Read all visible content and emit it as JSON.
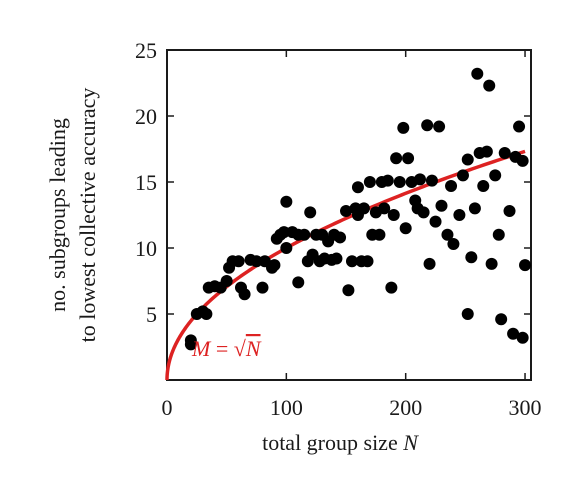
{
  "chart_data": {
    "type": "scatter",
    "title": "",
    "xlabel": "total group size ",
    "xlabel_var": "N",
    "ylabel_line1": "no. subgroups leading",
    "ylabel_line2": "to lowest collective accuracy",
    "xlim": [
      0,
      305
    ],
    "ylim": [
      0,
      25
    ],
    "xticks": [
      0,
      100,
      200,
      300
    ],
    "yticks": [
      5,
      10,
      15,
      20,
      25
    ],
    "grid": false,
    "colors": {
      "points": "#000000",
      "fit": "#dd2222",
      "axis": "#1a1a1a"
    },
    "fit_line": {
      "formula": "M = sqrt(N)",
      "label_var_left": "M",
      "label_eq": " = ",
      "label_sqrt": "√",
      "label_var_right": "N",
      "x_range": [
        0,
        300
      ]
    },
    "points": [
      [
        20,
        3
      ],
      [
        20,
        2.7
      ],
      [
        25,
        5
      ],
      [
        30,
        5.2
      ],
      [
        33,
        5
      ],
      [
        35,
        7
      ],
      [
        40,
        7.1
      ],
      [
        45,
        7
      ],
      [
        50,
        7.5
      ],
      [
        52,
        8.5
      ],
      [
        55,
        9
      ],
      [
        60,
        9
      ],
      [
        62,
        7
      ],
      [
        65,
        6.5
      ],
      [
        70,
        9.1
      ],
      [
        75,
        9
      ],
      [
        80,
        7
      ],
      [
        82,
        9
      ],
      [
        88,
        8.5
      ],
      [
        90,
        8.7
      ],
      [
        92,
        10.7
      ],
      [
        95,
        11
      ],
      [
        98,
        11.2
      ],
      [
        100,
        13.5
      ],
      [
        100,
        10
      ],
      [
        105,
        11.2
      ],
      [
        110,
        11
      ],
      [
        110,
        7.4
      ],
      [
        115,
        11
      ],
      [
        118,
        9
      ],
      [
        120,
        12.7
      ],
      [
        122,
        9.5
      ],
      [
        125,
        11
      ],
      [
        128,
        9
      ],
      [
        130,
        11
      ],
      [
        132,
        9.2
      ],
      [
        135,
        10.5
      ],
      [
        138,
        9.1
      ],
      [
        140,
        11
      ],
      [
        142,
        9.2
      ],
      [
        145,
        10.8
      ],
      [
        150,
        12.8
      ],
      [
        152,
        6.8
      ],
      [
        155,
        9
      ],
      [
        158,
        13
      ],
      [
        160,
        14.6
      ],
      [
        160,
        12.5
      ],
      [
        163,
        9
      ],
      [
        165,
        13
      ],
      [
        168,
        9
      ],
      [
        170,
        15
      ],
      [
        172,
        11
      ],
      [
        175,
        12.7
      ],
      [
        178,
        11
      ],
      [
        180,
        15
      ],
      [
        182,
        13
      ],
      [
        185,
        15.1
      ],
      [
        188,
        7
      ],
      [
        190,
        12.5
      ],
      [
        192,
        16.8
      ],
      [
        195,
        15
      ],
      [
        198,
        19.1
      ],
      [
        200,
        11.5
      ],
      [
        202,
        16.8
      ],
      [
        205,
        15
      ],
      [
        208,
        13.6
      ],
      [
        210,
        13
      ],
      [
        212,
        15.2
      ],
      [
        215,
        12.7
      ],
      [
        218,
        19.3
      ],
      [
        220,
        8.8
      ],
      [
        222,
        15.1
      ],
      [
        225,
        12
      ],
      [
        228,
        19.2
      ],
      [
        230,
        13.2
      ],
      [
        235,
        11
      ],
      [
        238,
        14.7
      ],
      [
        240,
        10.3
      ],
      [
        245,
        12.5
      ],
      [
        248,
        15.5
      ],
      [
        252,
        16.7
      ],
      [
        252,
        5
      ],
      [
        255,
        9.3
      ],
      [
        258,
        13
      ],
      [
        260,
        23.2
      ],
      [
        262,
        17.2
      ],
      [
        265,
        14.7
      ],
      [
        268,
        17.3
      ],
      [
        270,
        22.3
      ],
      [
        272,
        8.8
      ],
      [
        275,
        15.5
      ],
      [
        278,
        11
      ],
      [
        280,
        4.6
      ],
      [
        283,
        17.2
      ],
      [
        287,
        12.8
      ],
      [
        290,
        3.5
      ],
      [
        292,
        16.9
      ],
      [
        295,
        19.2
      ],
      [
        298,
        16.6
      ],
      [
        298,
        3.2
      ],
      [
        300,
        8.7
      ]
    ]
  }
}
